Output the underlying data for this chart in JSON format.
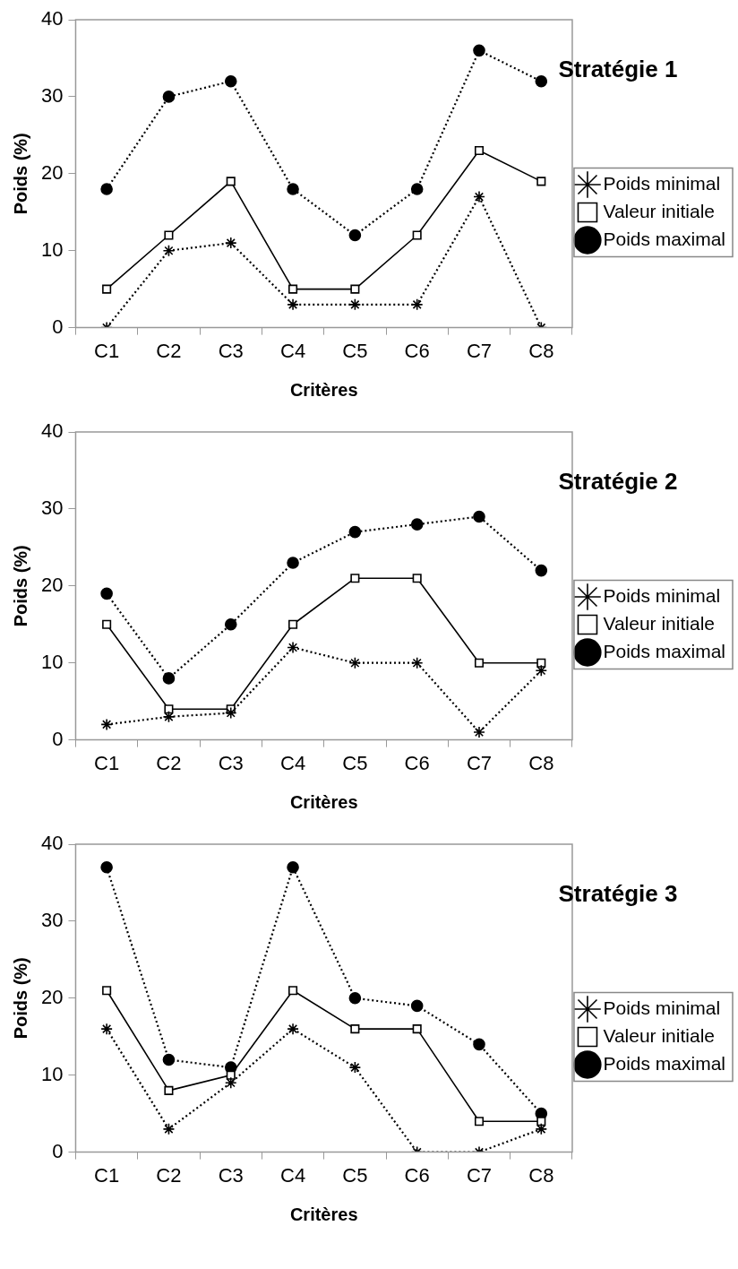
{
  "chart_data": [
    {
      "type": "line",
      "title": "Stratégie 1",
      "xlabel": "Critères",
      "ylabel": "Poids (%)",
      "categories": [
        "C1",
        "C2",
        "C3",
        "C4",
        "C5",
        "C6",
        "C7",
        "C8"
      ],
      "ylim": [
        0,
        40
      ],
      "yticks": [
        0,
        10,
        20,
        30,
        40
      ],
      "grid": false,
      "legend": "right",
      "series": [
        {
          "name": "Poids minimal",
          "color": "#000000",
          "marker": "cross",
          "line_style": "dotted",
          "values": [
            0,
            10,
            11,
            3,
            3,
            3,
            17,
            0
          ]
        },
        {
          "name": "Valeur initiale",
          "color": "#000000",
          "marker": "square",
          "line_style": "solid",
          "values": [
            5,
            12,
            19,
            5,
            5,
            12,
            23,
            19
          ]
        },
        {
          "name": "Poids maximal",
          "color": "#000000",
          "marker": "circle",
          "line_style": "dotted",
          "values": [
            18,
            30,
            32,
            18,
            12,
            18,
            36,
            32
          ]
        }
      ]
    },
    {
      "type": "line",
      "title": "Stratégie 2",
      "xlabel": "Critères",
      "ylabel": "Poids (%)",
      "categories": [
        "C1",
        "C2",
        "C3",
        "C4",
        "C5",
        "C6",
        "C7",
        "C8"
      ],
      "ylim": [
        0,
        40
      ],
      "yticks": [
        0,
        10,
        20,
        30,
        40
      ],
      "grid": false,
      "legend": "right",
      "series": [
        {
          "name": "Poids minimal",
          "color": "#000000",
          "marker": "cross",
          "line_style": "dotted",
          "values": [
            2,
            3,
            3.5,
            12,
            10,
            10,
            1,
            9
          ]
        },
        {
          "name": "Valeur initiale",
          "color": "#000000",
          "marker": "square",
          "line_style": "solid",
          "values": [
            15,
            4,
            4,
            15,
            21,
            21,
            10,
            10
          ]
        },
        {
          "name": "Poids maximal",
          "color": "#000000",
          "marker": "circle",
          "line_style": "dotted",
          "values": [
            19,
            8,
            15,
            23,
            27,
            28,
            29,
            22
          ]
        }
      ]
    },
    {
      "type": "line",
      "title": "Stratégie 3",
      "xlabel": "Critères",
      "ylabel": "Poids (%)",
      "categories": [
        "C1",
        "C2",
        "C3",
        "C4",
        "C5",
        "C6",
        "C7",
        "C8"
      ],
      "ylim": [
        0,
        40
      ],
      "yticks": [
        0,
        10,
        20,
        30,
        40
      ],
      "grid": false,
      "legend": "right",
      "series": [
        {
          "name": "Poids minimal",
          "color": "#000000",
          "marker": "cross",
          "line_style": "dotted",
          "values": [
            16,
            3,
            9,
            16,
            11,
            0,
            0,
            3
          ]
        },
        {
          "name": "Valeur initiale",
          "color": "#000000",
          "marker": "square",
          "line_style": "solid",
          "values": [
            21,
            8,
            10,
            21,
            16,
            16,
            4,
            4
          ]
        },
        {
          "name": "Poids maximal",
          "color": "#000000",
          "marker": "circle",
          "line_style": "dotted",
          "values": [
            37,
            12,
            11,
            37,
            20,
            19,
            14,
            5
          ]
        }
      ]
    }
  ]
}
